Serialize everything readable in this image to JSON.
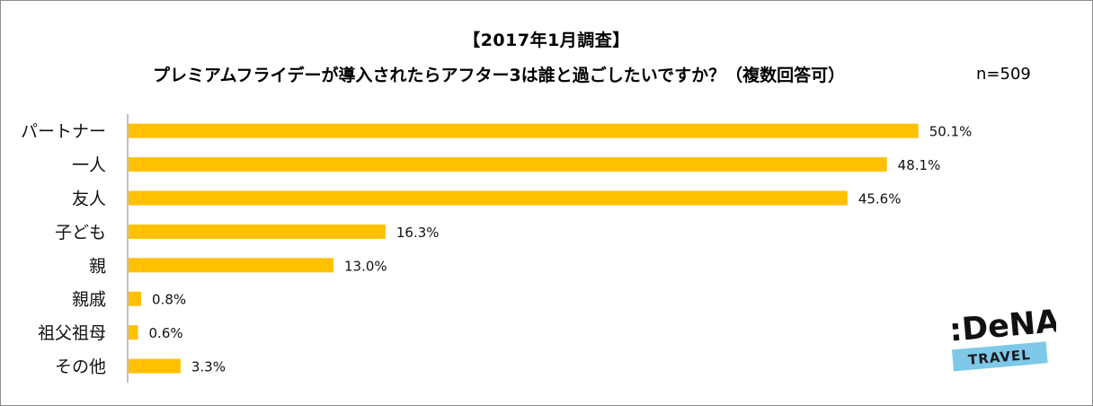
{
  "title": "【2017年1月調査】",
  "subtitle": "プレミアムフライデーが導入されたらアフター3は誰と過ごしたいですか？（複数回答可）",
  "sample_size": "n=509",
  "colors": {
    "bar": "#ffc000",
    "axis": "#808080",
    "logo_band": "#7ec8e9"
  },
  "logo": {
    "brand": ":DeNA",
    "sub": "TRAVEL"
  },
  "chart_data": {
    "type": "bar",
    "orientation": "horizontal",
    "categories": [
      "パートナー",
      "一人",
      "友人",
      "子ども",
      "親",
      "親戚",
      "祖父祖母",
      "その他"
    ],
    "values": [
      50.1,
      48.1,
      45.6,
      16.3,
      13.0,
      0.8,
      0.6,
      3.3
    ],
    "value_labels": [
      "50.1%",
      "48.1%",
      "45.6%",
      "16.3%",
      "13.0%",
      "0.8%",
      "0.6%",
      "3.3%"
    ],
    "unit": "%",
    "xlim": [
      0,
      60
    ],
    "grid": false,
    "legend": "none"
  }
}
